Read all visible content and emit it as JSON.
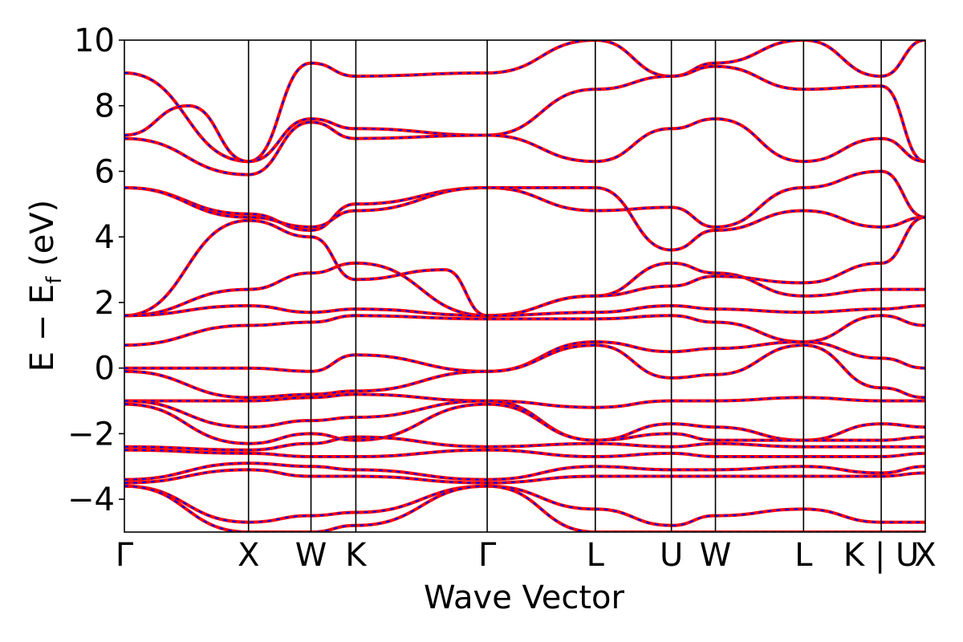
{
  "chart_data": {
    "type": "line",
    "title": "",
    "xlabel": "Wave Vector",
    "ylabel": "E − E",
    "ylabel_subscript": "f",
    "ylabel_unit": " (eV)",
    "ylim": [
      -5,
      10
    ],
    "y_ticks": [
      -4,
      -2,
      0,
      2,
      4,
      6,
      8,
      10
    ],
    "y_tick_labels": [
      "−4",
      "−2",
      "0",
      "2",
      "4",
      "6",
      "8",
      "10"
    ],
    "x_range": [
      0,
      1000
    ],
    "high_symmetry_points": [
      {
        "label": "Γ",
        "x": 0
      },
      {
        "label": "X",
        "x": 155
      },
      {
        "label": "W",
        "x": 233
      },
      {
        "label": "K",
        "x": 289
      },
      {
        "label": "Γ",
        "x": 453
      },
      {
        "label": "L",
        "x": 588
      },
      {
        "label": "U",
        "x": 683
      },
      {
        "label": "W",
        "x": 738
      },
      {
        "label": "L",
        "x": 848
      },
      {
        "label": "K | U",
        "x": 945
      },
      {
        "label": "X",
        "x": 1000
      }
    ],
    "grid": false,
    "legend": "none",
    "colors": {
      "band_primary": "#ff0000",
      "band_secondary": "#0000ff",
      "vline": "#000000",
      "frame": "#000000"
    },
    "series": [
      {
        "style": "red solid overlaid with blue dashed",
        "x": [
          0,
          155,
          233,
          289,
          453,
          588,
          683,
          738,
          848,
          945,
          1000
        ],
        "y": [
          9.0,
          6.3,
          9.3,
          8.9,
          9.0,
          10.0,
          8.9,
          9.3,
          10.0,
          8.9,
          10.0
        ]
      },
      {
        "x": [
          0,
          80,
          155,
          233,
          289,
          453,
          588,
          683,
          738,
          848,
          945,
          1000
        ],
        "y": [
          7.1,
          8.0,
          6.3,
          7.6,
          7.3,
          7.1,
          8.5,
          8.9,
          9.2,
          8.5,
          8.6,
          6.3
        ]
      },
      {
        "x": [
          0,
          155,
          233,
          289,
          453,
          588,
          683,
          738,
          848,
          945,
          1000
        ],
        "y": [
          7.0,
          5.9,
          7.5,
          7.0,
          7.1,
          6.3,
          7.3,
          7.6,
          6.3,
          7.0,
          6.3
        ]
      },
      {
        "x": [
          0,
          155,
          233,
          289,
          453,
          588,
          683,
          738,
          848,
          945,
          1000
        ],
        "y": [
          5.5,
          4.7,
          4.2,
          5.0,
          5.5,
          4.8,
          4.9,
          4.3,
          5.5,
          6.0,
          4.6
        ]
      },
      {
        "x": [
          0,
          155,
          233,
          289,
          453,
          588,
          683,
          738,
          848,
          945,
          1000
        ],
        "y": [
          5.5,
          4.6,
          4.3,
          4.8,
          5.5,
          5.5,
          3.6,
          4.2,
          4.8,
          4.3,
          4.6
        ]
      },
      {
        "x": [
          0,
          155,
          233,
          289,
          453,
          588,
          683,
          738,
          848,
          945,
          1000
        ],
        "y": [
          1.6,
          2.4,
          2.9,
          3.2,
          1.6,
          2.2,
          3.2,
          2.9,
          2.2,
          2.4,
          2.4
        ]
      },
      {
        "x": [
          0,
          155,
          233,
          289,
          400,
          453,
          588,
          683,
          738,
          848,
          945,
          1000
        ],
        "y": [
          1.6,
          4.5,
          4.0,
          2.7,
          3.0,
          1.6,
          2.2,
          2.5,
          2.8,
          2.6,
          3.2,
          4.6
        ]
      },
      {
        "x": [
          0,
          155,
          233,
          289,
          453,
          588,
          683,
          738,
          848,
          945,
          1000
        ],
        "y": [
          1.6,
          1.9,
          1.7,
          1.8,
          1.6,
          1.7,
          1.9,
          1.8,
          1.7,
          1.8,
          1.9
        ]
      },
      {
        "x": [
          0,
          155,
          233,
          289,
          453,
          588,
          683,
          738,
          848,
          945,
          1000
        ],
        "y": [
          0.7,
          1.3,
          1.4,
          1.6,
          1.5,
          1.5,
          1.6,
          1.4,
          0.8,
          1.6,
          1.3
        ]
      },
      {
        "x": [
          0,
          155,
          233,
          289,
          453,
          588,
          683,
          738,
          848,
          945,
          1000
        ],
        "y": [
          0.0,
          0.0,
          -0.1,
          0.4,
          -0.1,
          0.8,
          0.5,
          0.6,
          0.8,
          0.3,
          0.0
        ]
      },
      {
        "x": [
          0,
          155,
          233,
          289,
          453,
          588,
          683,
          738,
          848,
          945,
          1000
        ],
        "y": [
          -0.1,
          -0.9,
          -0.8,
          -0.7,
          -0.1,
          0.7,
          -0.3,
          -0.2,
          0.7,
          -0.6,
          -0.9
        ]
      },
      {
        "x": [
          0,
          155,
          233,
          289,
          453,
          588,
          683,
          738,
          848,
          945,
          1000
        ],
        "y": [
          -1.0,
          -1.0,
          -0.9,
          -0.8,
          -1.0,
          -1.2,
          -1.0,
          -1.0,
          -0.9,
          -1.0,
          -1.0
        ]
      },
      {
        "x": [
          0,
          155,
          233,
          289,
          453,
          588,
          683,
          738,
          848,
          945,
          1000
        ],
        "y": [
          -1.0,
          -1.8,
          -1.6,
          -1.5,
          -1.0,
          -2.2,
          -1.7,
          -1.8,
          -2.2,
          -1.7,
          -1.8
        ]
      },
      {
        "x": [
          0,
          155,
          233,
          289,
          453,
          588,
          683,
          738,
          848,
          945,
          1000
        ],
        "y": [
          -1.1,
          -2.3,
          -2.0,
          -2.2,
          -1.1,
          -2.2,
          -2.0,
          -2.2,
          -2.2,
          -2.2,
          -2.1
        ]
      },
      {
        "x": [
          0,
          155,
          233,
          289,
          453,
          588,
          683,
          738,
          848,
          945,
          1000
        ],
        "y": [
          -2.4,
          -2.5,
          -2.3,
          -2.1,
          -2.4,
          -2.3,
          -2.4,
          -2.3,
          -2.4,
          -2.4,
          -2.4
        ]
      },
      {
        "x": [
          0,
          155,
          233,
          289,
          453,
          588,
          683,
          738,
          848,
          945,
          1000
        ],
        "y": [
          -2.5,
          -2.6,
          -2.7,
          -2.7,
          -2.5,
          -2.7,
          -2.6,
          -2.7,
          -2.7,
          -2.7,
          -2.6
        ]
      },
      {
        "x": [
          0,
          155,
          233,
          289,
          453,
          588,
          683,
          738,
          848,
          945,
          1000
        ],
        "y": [
          -3.4,
          -2.9,
          -3.0,
          -3.1,
          -3.4,
          -3.0,
          -3.1,
          -3.1,
          -3.0,
          -3.2,
          -3.0
        ]
      },
      {
        "x": [
          0,
          155,
          233,
          289,
          453,
          588,
          683,
          738,
          848,
          945,
          1000
        ],
        "y": [
          -3.5,
          -3.1,
          -3.3,
          -3.3,
          -3.5,
          -3.3,
          -3.3,
          -3.3,
          -3.3,
          -3.3,
          -3.2
        ]
      },
      {
        "x": [
          0,
          155,
          233,
          289,
          453,
          588,
          683,
          738,
          848,
          945,
          1000
        ],
        "y": [
          -3.6,
          -4.7,
          -4.5,
          -4.4,
          -3.6,
          -4.3,
          -4.8,
          -4.5,
          -4.3,
          -4.7,
          -4.7
        ]
      },
      {
        "x": [
          0,
          155,
          233,
          289,
          453,
          588,
          683,
          738,
          848,
          945,
          1000
        ],
        "y": [
          -3.6,
          -5.0,
          -5.0,
          -4.8,
          -3.6,
          -5.0,
          -5.0,
          -5.0,
          -5.0,
          -5.0,
          -5.0
        ]
      }
    ]
  }
}
